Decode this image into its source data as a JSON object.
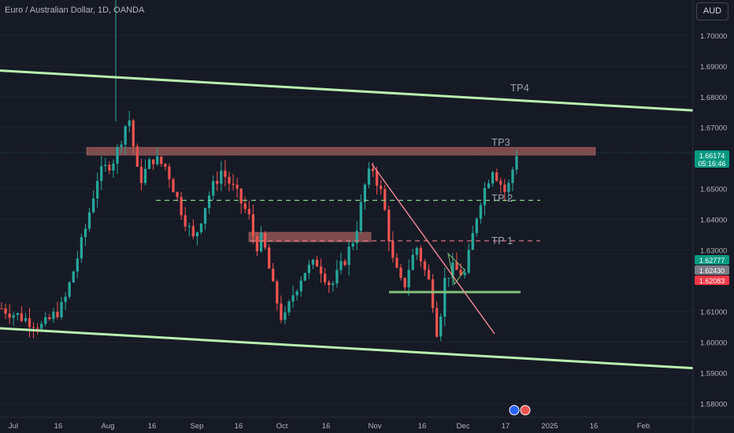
{
  "header": {
    "symbol_title": "Euro / Australian Dollar, 1D, OANDA",
    "currency_button": "AUD"
  },
  "colors": {
    "background": "#161a25",
    "up": "#26a69a",
    "down": "#ef5350",
    "channel": "#b9f0b0",
    "zone": "#a25a5a",
    "axis_text": "#b2b5be",
    "trendline": "#f48a9a",
    "dashed_green": "#88d18a",
    "dashed_red": "#ef7b8a",
    "badge_grey": "#787b86"
  },
  "chart_data": {
    "type": "candlestick",
    "symbol": "EURAUD",
    "interval": "1D",
    "source": "OANDA",
    "ylim": [
      1.5755,
      1.7115
    ],
    "y_ticks": [
      "1.70000",
      "1.69000",
      "1.68000",
      "1.67000",
      "1.65000",
      "1.64000",
      "1.63000",
      "1.61000",
      "1.60000",
      "1.59000",
      "1.58000"
    ],
    "x_ticks": [
      "Jul",
      "16",
      "Aug",
      "16",
      "Sep",
      "16",
      "Oct",
      "16",
      "Nov",
      "16",
      "Dec",
      "17",
      "2025",
      "16",
      "Feb"
    ],
    "price_badges": [
      {
        "price": "1.66174",
        "sub": "05:16:46",
        "color": "#089981"
      },
      {
        "price": "1.62777",
        "color": "#089981"
      },
      {
        "price": "1.62430",
        "color": "#787b86"
      },
      {
        "price": "1.62083",
        "color": "#f23645"
      }
    ],
    "annotations": [
      "TP4",
      "TP3",
      "TP 2",
      "TP 1"
    ],
    "last_price": 1.66174,
    "channel_upper": {
      "start": 1.6885,
      "end": 1.6755
    },
    "channel_lower": {
      "start": 1.6045,
      "end": 1.5915
    },
    "resistance_zone": [
      1.6608,
      1.6622
    ],
    "mid_zone": [
      1.6325,
      1.6345
    ],
    "support_level": 1.6163,
    "tp2_level": 1.6462,
    "tp1_level": 1.633,
    "candle_count": 130
  }
}
